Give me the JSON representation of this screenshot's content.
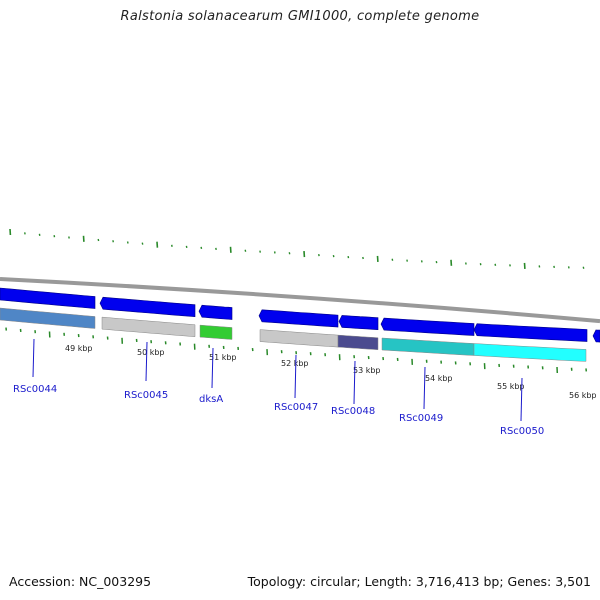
{
  "header": {
    "title": "Ralstonia solanacearum GMI1000, complete genome"
  },
  "footer": {
    "accession": "Accession: NC_003295",
    "summary": "Topology: circular; Length: 3,716,413 bp; Genes: 3,501"
  },
  "colors": {
    "strand_forward": "#0000ee",
    "backbone": "#999999",
    "tick": "#2a8a2a",
    "label": "#1a1acc"
  },
  "scale_labels": [
    "49 kbp",
    "50 kbp",
    "51 kbp",
    "52 kbp",
    "53 kbp",
    "54 kbp",
    "55 kbp",
    "56 kbp"
  ],
  "genes": [
    {
      "label": "RSc0044",
      "color": "#4f86c6"
    },
    {
      "label": "RSc0045",
      "color": "#c8c8c8"
    },
    {
      "label": "dksA",
      "color": "#33cc33"
    },
    {
      "label": "RSc0047",
      "color": "#c8c8c8"
    },
    {
      "label": "RSc0048",
      "color": "#4b4b8f"
    },
    {
      "label": "RSc0049",
      "color": "#26c4c4"
    },
    {
      "label": "RSc0050",
      "color": "#22ffff"
    }
  ]
}
